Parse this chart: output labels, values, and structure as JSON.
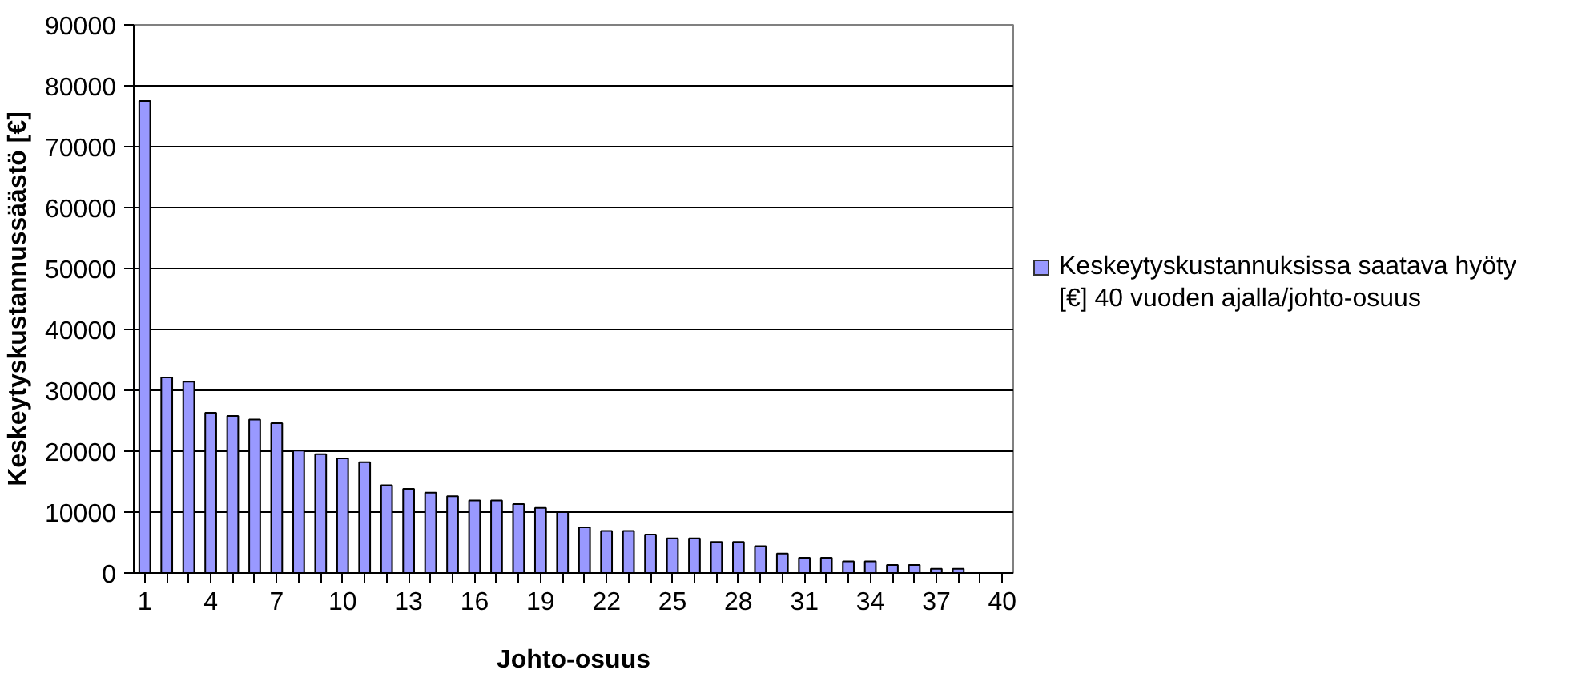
{
  "chart_data": {
    "type": "bar",
    "xlabel": "Johto-osuus",
    "ylabel": "Keskeytyskustannussäästö [€]",
    "categories": [
      "1",
      null,
      null,
      "4",
      null,
      null,
      "7",
      null,
      null,
      "10",
      null,
      null,
      "13",
      null,
      null,
      "16",
      null,
      null,
      "19",
      null,
      null,
      "22",
      null,
      null,
      "25",
      null,
      null,
      "28",
      null,
      null,
      "31",
      null,
      null,
      "34",
      null,
      null,
      "37",
      null,
      null,
      "40"
    ],
    "series": [
      {
        "name": "Keskeytyskustannuksissa saatava hyöty [€] 40 vuoden ajalla/johto-osuus",
        "color": "#9999ff",
        "values": [
          77500,
          32100,
          31400,
          26300,
          25800,
          25200,
          24600,
          20100,
          19500,
          18800,
          18200,
          14400,
          13800,
          13200,
          12600,
          11900,
          11900,
          11300,
          10700,
          10000,
          7500,
          6900,
          6900,
          6300,
          5700,
          5700,
          5100,
          5100,
          4400,
          3200,
          2500,
          2500,
          1900,
          1900,
          1300,
          1300,
          700,
          700,
          null,
          null
        ]
      }
    ],
    "ylim": [
      0,
      90000
    ],
    "yticks": [
      0,
      10000,
      20000,
      30000,
      40000,
      50000,
      60000,
      70000,
      80000,
      90000
    ],
    "grid": "y",
    "legend": "right"
  }
}
